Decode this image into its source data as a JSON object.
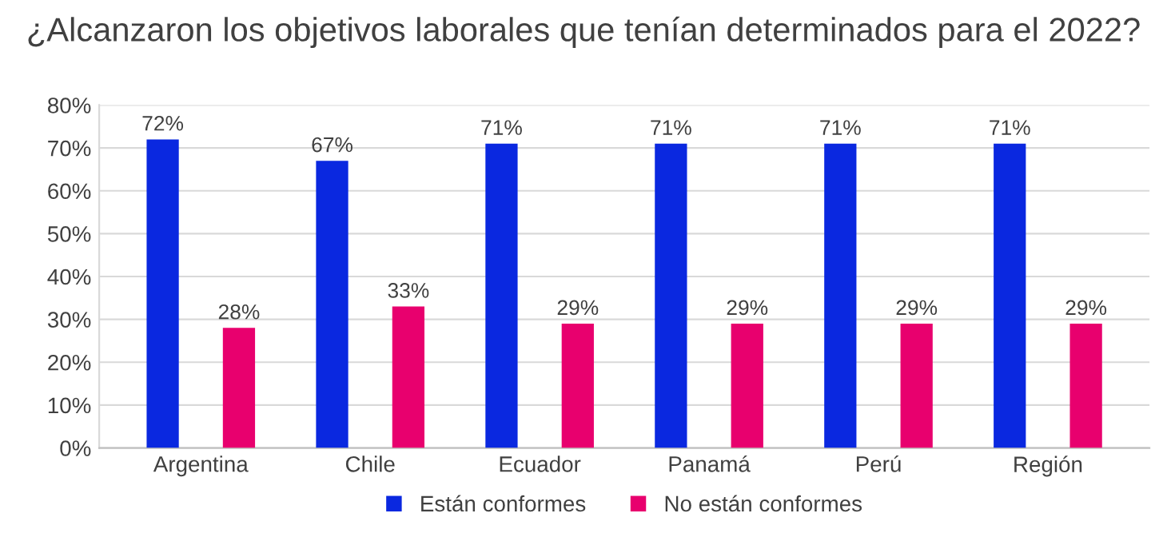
{
  "chart_data": {
    "type": "bar",
    "title": "¿Alcanzaron los objetivos laborales que tenían determinados para el 2022?",
    "categories": [
      "Argentina",
      "Chile",
      "Ecuador",
      "Panamá",
      "Perú",
      "Región"
    ],
    "series": [
      {
        "name": "Están conformes",
        "color": "#0a28e0",
        "values": [
          72,
          67,
          71,
          71,
          71,
          71
        ],
        "value_labels": [
          "72%",
          "67%",
          "71%",
          "71%",
          "71%",
          "71%"
        ]
      },
      {
        "name": "No están conformes",
        "color": "#e8006e",
        "values": [
          28,
          33,
          29,
          29,
          29,
          29
        ],
        "value_labels": [
          "28%",
          "33%",
          "29%",
          "29%",
          "29%",
          "29%"
        ]
      }
    ],
    "ylim": [
      0,
      80
    ],
    "yticks": [
      {
        "value": 0,
        "label": "0%"
      },
      {
        "value": 10,
        "label": "10%"
      },
      {
        "value": 20,
        "label": "20%"
      },
      {
        "value": 30,
        "label": "30%"
      },
      {
        "value": 40,
        "label": "40%"
      },
      {
        "value": 50,
        "label": "50%"
      },
      {
        "value": 60,
        "label": "60%"
      },
      {
        "value": 70,
        "label": "70%"
      },
      {
        "value": 80,
        "label": "80%"
      }
    ],
    "grid": "y",
    "legend": "bottom"
  }
}
